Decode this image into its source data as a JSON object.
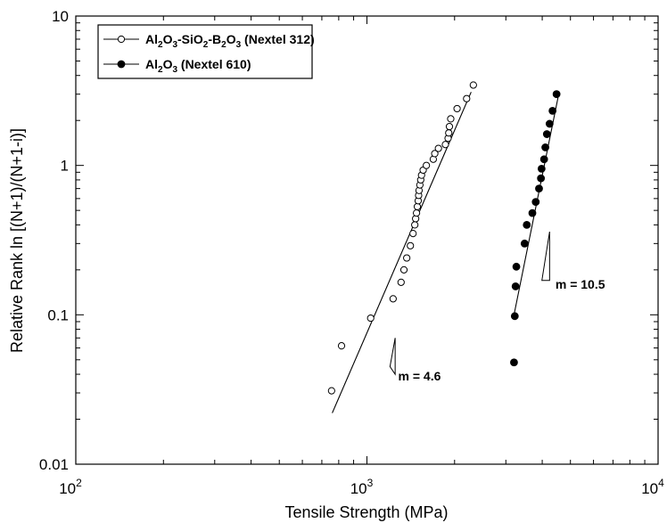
{
  "chart_data": {
    "type": "scatter",
    "x_scale": "log",
    "y_scale": "log",
    "xlim": [
      100,
      10000
    ],
    "ylim": [
      0.01,
      10
    ],
    "xlabel": "Tensile Strength (MPa)",
    "ylabel": "Relative Rank ln [(N+1)/(N+1-i)]",
    "x_ticks": [
      {
        "value": 100,
        "base": "10",
        "exp": "2"
      },
      {
        "value": 1000,
        "base": "10",
        "exp": "3"
      },
      {
        "value": 10000,
        "base": "10",
        "exp": "4"
      }
    ],
    "y_ticks": [
      {
        "value": 0.01,
        "label": "0.01"
      },
      {
        "value": 0.1,
        "label": "0.1"
      },
      {
        "value": 1,
        "label": "1"
      },
      {
        "value": 10,
        "label": "10"
      }
    ],
    "legend": {
      "placement": "top-left",
      "entries": [
        {
          "label_parts": [
            [
              "Al",
              ""
            ],
            [
              "2",
              "sub"
            ],
            [
              "O",
              ""
            ],
            [
              "3",
              "sub"
            ],
            [
              "-SiO",
              ""
            ],
            [
              "2",
              "sub"
            ],
            [
              "-B",
              ""
            ],
            [
              "2",
              "sub"
            ],
            [
              "O",
              ""
            ],
            [
              "3",
              "sub"
            ],
            [
              " (Nextel 312)",
              ""
            ]
          ]
        },
        {
          "label_parts": [
            [
              "Al",
              ""
            ],
            [
              "2",
              "sub"
            ],
            [
              "O",
              ""
            ],
            [
              "3",
              "sub"
            ],
            [
              " (Nextel 610)",
              ""
            ]
          ]
        }
      ]
    },
    "series": [
      {
        "marker": "open-circle",
        "points": [
          [
            756,
            0.031
          ],
          [
            818,
            0.062
          ],
          [
            1030,
            0.095
          ],
          [
            1230,
            0.128
          ],
          [
            1310,
            0.165
          ],
          [
            1340,
            0.2
          ],
          [
            1370,
            0.24
          ],
          [
            1410,
            0.29
          ],
          [
            1440,
            0.35
          ],
          [
            1460,
            0.4
          ],
          [
            1470,
            0.44
          ],
          [
            1480,
            0.48
          ],
          [
            1490,
            0.53
          ],
          [
            1500,
            0.58
          ],
          [
            1505,
            0.63
          ],
          [
            1510,
            0.68
          ],
          [
            1520,
            0.74
          ],
          [
            1530,
            0.8
          ],
          [
            1540,
            0.86
          ],
          [
            1560,
            0.93
          ],
          [
            1600,
            1.0
          ],
          [
            1690,
            1.1
          ],
          [
            1710,
            1.2
          ],
          [
            1760,
            1.3
          ],
          [
            1860,
            1.38
          ],
          [
            1900,
            1.52
          ],
          [
            1910,
            1.65
          ],
          [
            1920,
            1.82
          ],
          [
            1940,
            2.05
          ],
          [
            2040,
            2.4
          ],
          [
            2200,
            2.8
          ],
          [
            2320,
            3.45
          ]
        ],
        "fit_line": [
          [
            760,
            0.022
          ],
          [
            2280,
            3.1
          ]
        ]
      },
      {
        "marker": "filled-circle",
        "points": [
          [
            3200,
            0.048
          ],
          [
            3220,
            0.098
          ],
          [
            3240,
            0.155
          ],
          [
            3260,
            0.21
          ],
          [
            3480,
            0.3
          ],
          [
            3540,
            0.4
          ],
          [
            3700,
            0.48
          ],
          [
            3800,
            0.57
          ],
          [
            3900,
            0.7
          ],
          [
            3960,
            0.82
          ],
          [
            3980,
            0.95
          ],
          [
            4060,
            1.1
          ],
          [
            4100,
            1.32
          ],
          [
            4150,
            1.62
          ],
          [
            4240,
            1.9
          ],
          [
            4340,
            2.32
          ],
          [
            4480,
            3.0
          ]
        ],
        "fit_line": [
          [
            3190,
            0.097
          ],
          [
            4560,
            3.02
          ]
        ]
      }
    ],
    "annotations": [
      {
        "text": "m = 4.6",
        "triangle": [
          [
            1200,
            0.045
          ],
          [
            1250,
            0.04
          ],
          [
            1250,
            0.07
          ]
        ],
        "at": [
          1280,
          0.039
        ]
      },
      {
        "text": "m = 10.5",
        "triangle": [
          [
            3990,
            0.17
          ],
          [
            4240,
            0.17
          ],
          [
            4240,
            0.36
          ]
        ],
        "at": [
          4440,
          0.16
        ]
      }
    ]
  }
}
